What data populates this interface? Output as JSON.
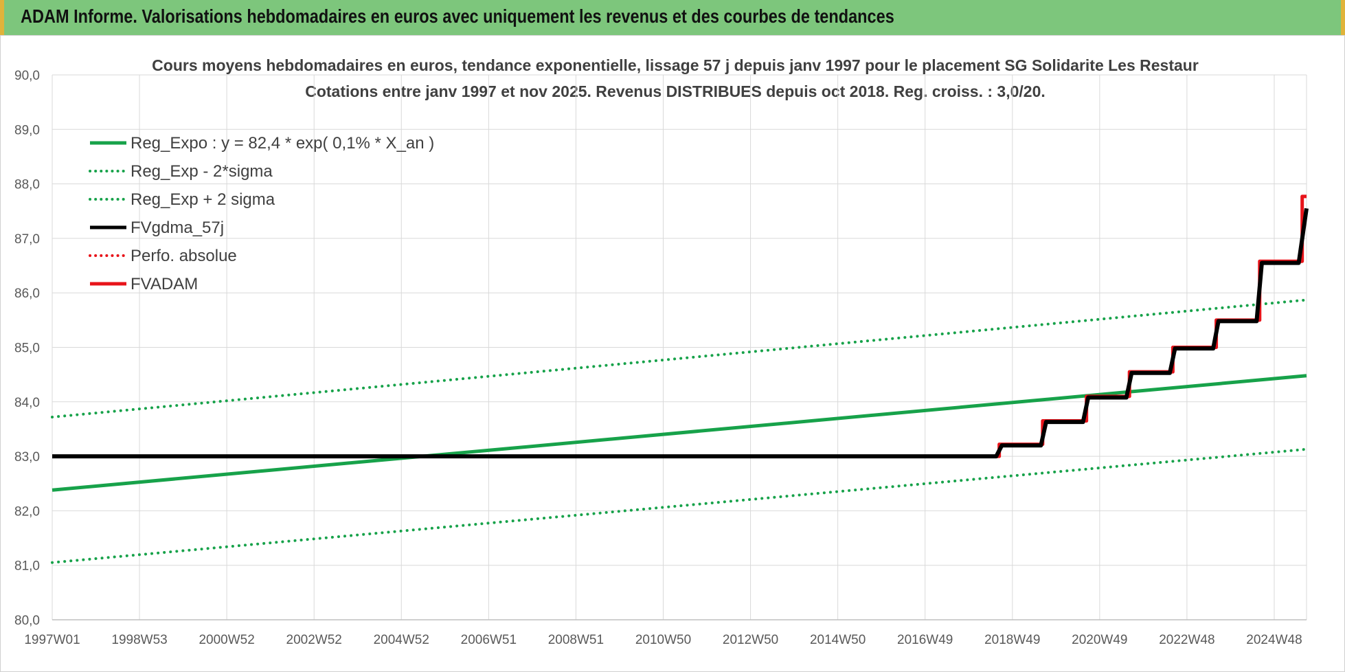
{
  "banner": {
    "title": "ADAM Informe. Valorisations hebdomadaires en euros avec uniquement les revenus et des courbes de tendances"
  },
  "chart_data": {
    "type": "line",
    "title": "Cours moyens hebdomadaires en euros, tendance exponentielle, lissage 57 j depuis janv 1997 pour le placement SG Solidarite Les Restaur",
    "subtitle": "Cotations entre janv 1997 et nov 2025. Revenus DISTRIBUES depuis oct 2018. Reg. croiss. : 3,0/20.",
    "x_tick_labels": [
      "1997W01",
      "1998W53",
      "2000W52",
      "2002W52",
      "2004W52",
      "2006W51",
      "2008W51",
      "2010W50",
      "2012W50",
      "2014W50",
      "2016W49",
      "2018W49",
      "2020W49",
      "2022W48",
      "2024W48"
    ],
    "x_range": [
      1997.0,
      2025.9
    ],
    "ylim": [
      80.0,
      90.0
    ],
    "y_ticks": [
      "80,0",
      "81,0",
      "82,0",
      "83,0",
      "84,0",
      "85,0",
      "86,0",
      "87,0",
      "88,0",
      "89,0",
      "90,0"
    ],
    "grid": true,
    "legend_position": "top-left",
    "series": [
      {
        "name": "Reg_Expo : y = 82,4 * exp( 0,1% *  X_an )",
        "color": "#17a24a",
        "style": "solid",
        "width": 5,
        "x": [
          1997.0,
          2025.9
        ],
        "y": [
          82.38,
          84.48
        ]
      },
      {
        "name": "Reg_Exp - 2*sigma",
        "color": "#17a24a",
        "style": "dotted",
        "width": 4,
        "x": [
          1997.0,
          2025.9
        ],
        "y": [
          81.05,
          83.13
        ]
      },
      {
        "name": "Reg_Exp + 2 sigma",
        "color": "#17a24a",
        "style": "dotted",
        "width": 4,
        "x": [
          1997.0,
          2025.9
        ],
        "y": [
          83.72,
          85.87
        ]
      },
      {
        "name": "FVgdma_57j",
        "color": "#000000",
        "style": "smooth",
        "width": 6,
        "x": [
          1997.0,
          2018.75,
          2018.88,
          2019.78,
          2019.9,
          2020.75,
          2020.87,
          2021.75,
          2021.87,
          2022.75,
          2022.87,
          2023.75,
          2023.87,
          2024.75,
          2024.87,
          2025.72,
          2025.9
        ],
        "y": [
          83.0,
          83.0,
          83.2,
          83.2,
          83.63,
          83.63,
          84.08,
          84.08,
          84.53,
          84.53,
          84.98,
          84.98,
          85.48,
          85.48,
          86.55,
          86.55,
          87.55
        ]
      },
      {
        "name": "Perfo. absolue",
        "color": "#e8141a",
        "style": "dotted",
        "width": 3,
        "x": [],
        "y": []
      },
      {
        "name": "FVADAM",
        "color": "#e8141a",
        "style": "step",
        "width": 5,
        "x": [
          1997.0,
          2018.82,
          2019.82,
          2020.83,
          2021.82,
          2022.82,
          2023.82,
          2024.82,
          2025.8,
          2025.9
        ],
        "y": [
          83.0,
          83.22,
          83.65,
          84.1,
          84.55,
          85.0,
          85.5,
          86.58,
          87.77,
          87.77
        ]
      }
    ]
  }
}
